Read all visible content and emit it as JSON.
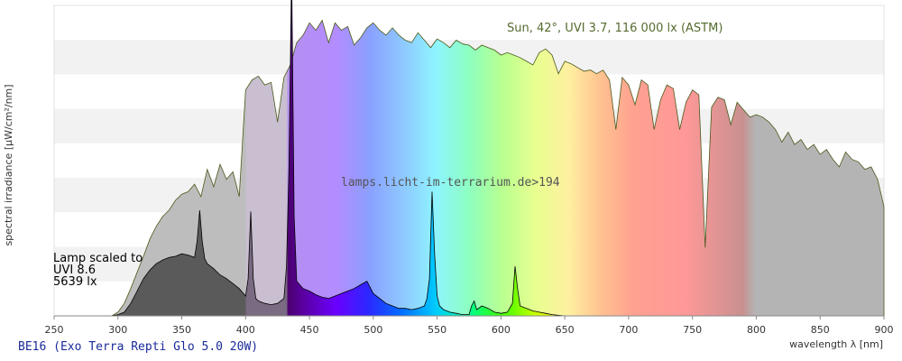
{
  "chart_data": {
    "type": "area",
    "xlabel": "wavelength λ [nm]",
    "ylabel": "spectral irradiance [µW/cm²/nm]",
    "xlim": [
      250,
      900
    ],
    "x_ticks": [
      250,
      300,
      350,
      400,
      450,
      500,
      550,
      600,
      650,
      700,
      750,
      800,
      850,
      900
    ],
    "grid": "horizontal bands",
    "annotations": {
      "sun": "Sun, 42°, UVI 3.7, 116 000 lx (ASTM)",
      "lamp_line1": "Lamp scaled to",
      "lamp_line2": "UVI 8.6",
      "lamp_line3": "5639 lx",
      "watermark": "lamps.licht-im-terrarium.de>194"
    },
    "series": [
      {
        "x": [
          295,
          300,
          305,
          310,
          315,
          320,
          325,
          330,
          335,
          340,
          345,
          350,
          355,
          360,
          365,
          370,
          375,
          380,
          385,
          390,
          395,
          400,
          405,
          410,
          415,
          420,
          425,
          430,
          435,
          440,
          445,
          450,
          455,
          460,
          465,
          470,
          475,
          480,
          485,
          490,
          495,
          500,
          505,
          510,
          515,
          520,
          525,
          530,
          535,
          540,
          545,
          550,
          555,
          560,
          565,
          570,
          575,
          580,
          585,
          590,
          595,
          600,
          605,
          610,
          615,
          620,
          625,
          630,
          635,
          640,
          645,
          650,
          655,
          660,
          665,
          670,
          675,
          680,
          685,
          690,
          695,
          700,
          705,
          710,
          715,
          720,
          725,
          730,
          735,
          740,
          745,
          750,
          755,
          760,
          765,
          770,
          775,
          780,
          785,
          790,
          795,
          800,
          805,
          810,
          815,
          820,
          825,
          830,
          835,
          840,
          845,
          850,
          855,
          860,
          865,
          870,
          875,
          880,
          885,
          890,
          895,
          900
        ],
        "values": [
          0,
          3,
          10,
          22,
          35,
          48,
          62,
          72,
          80,
          85,
          93,
          98,
          100,
          106,
          96,
          118,
          104,
          122,
          110,
          116,
          96,
          182,
          190,
          193,
          186,
          188,
          156,
          192,
          202,
          220,
          226,
          236,
          230,
          238,
          220,
          236,
          230,
          233,
          218,
          224,
          232,
          236,
          230,
          226,
          232,
          226,
          222,
          220,
          228,
          222,
          216,
          223,
          220,
          216,
          222,
          219,
          218,
          214,
          218,
          216,
          214,
          210,
          212,
          210,
          208,
          205,
          202,
          212,
          215,
          210,
          195,
          205,
          203,
          200,
          197,
          198,
          195,
          198,
          190,
          150,
          192,
          186,
          170,
          190,
          186,
          150,
          174,
          186,
          183,
          150,
          172,
          182,
          178,
          55,
          168,
          176,
          174,
          154,
          172,
          166,
          160,
          162,
          160,
          156,
          150,
          140,
          148,
          138,
          142,
          134,
          138,
          130,
          134,
          126,
          120,
          132,
          126,
          124,
          118,
          120,
          110,
          88
        ]
      },
      {
        "x": [
          295,
          300,
          305,
          310,
          315,
          320,
          325,
          330,
          335,
          340,
          345,
          350,
          355,
          360,
          362,
          364,
          366,
          368,
          370,
          375,
          380,
          385,
          390,
          395,
          400,
          402,
          404,
          406,
          408,
          410,
          415,
          420,
          425,
          430,
          432,
          434,
          436,
          438,
          440,
          445,
          450,
          455,
          460,
          465,
          470,
          475,
          480,
          485,
          490,
          495,
          500,
          505,
          510,
          515,
          520,
          525,
          530,
          535,
          540,
          542,
          544,
          546,
          548,
          550,
          552,
          555,
          560,
          565,
          570,
          575,
          577,
          579,
          581,
          585,
          590,
          595,
          600,
          605,
          609,
          611,
          613,
          615,
          620,
          625,
          630,
          635,
          640,
          650,
          700,
          750,
          800,
          850,
          900
        ],
        "values": [
          0,
          1,
          3,
          10,
          20,
          30,
          37,
          42,
          45,
          47,
          48,
          50,
          49,
          47,
          60,
          85,
          60,
          46,
          42,
          38,
          33,
          30,
          26,
          22,
          16,
          30,
          84,
          30,
          14,
          12,
          10,
          9,
          10,
          14,
          40,
          120,
          280,
          80,
          28,
          22,
          20,
          17,
          15,
          14,
          16,
          18,
          20,
          22,
          25,
          28,
          18,
          14,
          10,
          8,
          6,
          6,
          5,
          6,
          8,
          14,
          30,
          100,
          50,
          16,
          8,
          5,
          3,
          2,
          1,
          1,
          8,
          12,
          5,
          8,
          6,
          3,
          2,
          3,
          10,
          40,
          22,
          8,
          6,
          4,
          3,
          2,
          1,
          0,
          0,
          0,
          0,
          0,
          0
        ]
      }
    ]
  },
  "caption": "BE16 (Exo Terra Repti Glo 5.0 20W)"
}
